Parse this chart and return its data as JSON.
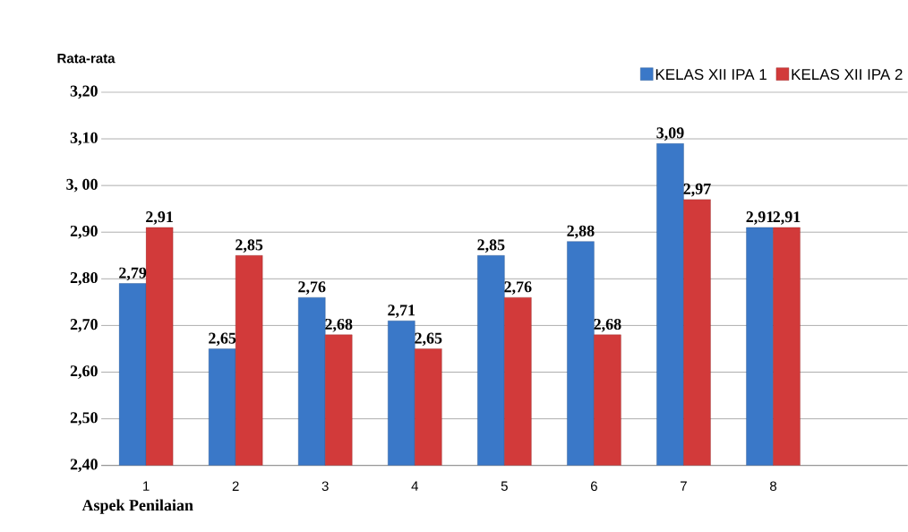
{
  "chart_data": {
    "type": "bar",
    "xlabel": "Aspek Penilaian",
    "ylabel": "Rata-rata",
    "categories": [
      "1",
      "2",
      "3",
      "4",
      "5",
      "6",
      "7",
      "8",
      null
    ],
    "series": [
      {
        "name": "KELAS XII IPA 1",
        "color": "#3a78c8",
        "values": [
          2.79,
          2.65,
          2.76,
          2.71,
          2.85,
          2.88,
          3.09,
          2.91,
          null
        ],
        "value_labels": [
          "2,79",
          "2,65",
          "2,76",
          "2,71",
          "2,85",
          "2,88",
          "3,09",
          "2,91",
          null
        ]
      },
      {
        "name": "KELAS XII IPA 2",
        "color": "#d23a3a",
        "values": [
          2.91,
          2.85,
          2.68,
          2.65,
          2.76,
          2.68,
          2.97,
          2.91,
          null
        ],
        "value_labels": [
          "2,91",
          "2,85",
          "2,68",
          "2,65",
          "2,76",
          "2,68",
          "2,97",
          "2,91",
          null
        ]
      }
    ],
    "ylim": [
      2.4,
      3.2
    ],
    "yticks": [
      {
        "value": 2.4,
        "label": "2,40"
      },
      {
        "value": 2.5,
        "label": "2,50"
      },
      {
        "value": 2.6,
        "label": "2,60"
      },
      {
        "value": 2.7,
        "label": "2,70"
      },
      {
        "value": 2.8,
        "label": "2,80"
      },
      {
        "value": 2.9,
        "label": "2,90"
      },
      {
        "value": 3.0,
        "label": "3, 00"
      },
      {
        "value": 3.1,
        "label": "3,10"
      },
      {
        "value": 3.2,
        "label": "3,20"
      }
    ],
    "grid": "y",
    "legend": "top right"
  }
}
